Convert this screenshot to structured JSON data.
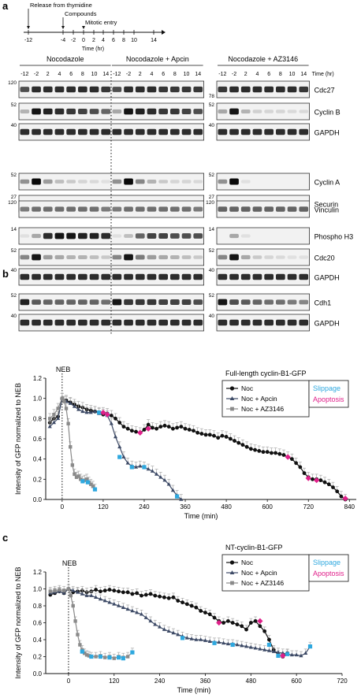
{
  "panel_a": {
    "letter": "a",
    "timeline": {
      "events": [
        {
          "label": "Release from thymidine",
          "at": "-12"
        },
        {
          "label": "Compounds",
          "at": "-4"
        },
        {
          "label": "Mitotic entry",
          "at": "0"
        }
      ],
      "ticks": [
        "-12",
        "-4",
        "-2",
        "0",
        "2",
        "4",
        "6",
        "8",
        "10",
        "14"
      ],
      "axis_label": "Time (hr)"
    },
    "time_header_label": "Time (hr)",
    "conditions": [
      {
        "name": "Nocodazole",
        "timepoints": [
          "-12",
          "-2",
          "2",
          "4",
          "6",
          "8",
          "10",
          "14"
        ]
      },
      {
        "name": "Nocodazole + Apcin",
        "timepoints": [
          "-12",
          "-2",
          "2",
          "4",
          "6",
          "8",
          "10",
          "14"
        ]
      },
      {
        "name": "Nocodazole + AZ3146",
        "timepoints": [
          "-12",
          "-2",
          "2",
          "4",
          "6",
          "8",
          "10",
          "14"
        ]
      }
    ],
    "blots": [
      {
        "protein": "Cdc27",
        "mw_left": "120",
        "mw_right": "78"
      },
      {
        "protein": "Cyclin B",
        "mw_left": "52",
        "mw_right": "52"
      },
      {
        "protein": "GAPDH",
        "mw_left": "40",
        "mw_right": "40"
      },
      {
        "protein": "Cyclin A",
        "mw_left": "52",
        "mw_right": "52"
      },
      {
        "protein": "Securin",
        "mw_left": "27",
        "mw_right": "27"
      },
      {
        "protein": "Vinculin",
        "mw_left": "120",
        "mw_right": "120"
      },
      {
        "protein": "Phospho H3",
        "mw_left": "14",
        "mw_right": "14"
      },
      {
        "protein": "Cdc20",
        "mw_left": "52",
        "mw_right": "52"
      },
      {
        "protein": "GAPDH",
        "mw_left": "40",
        "mw_right": "40"
      },
      {
        "protein": "Cdh1",
        "mw_left": "52",
        "mw_right": "52"
      },
      {
        "protein": "GAPDH",
        "mw_left": "40",
        "mw_right": "40"
      }
    ]
  },
  "chart_data": [
    {
      "panel": "b",
      "type": "line",
      "title": "Full-length cyclin-B1-GFP",
      "annotation": "NEB",
      "ylabel": "Intensity of GFP normalized to NEB",
      "xlabel": "Time (min)",
      "xlim": [
        -48,
        860
      ],
      "ylim": [
        0,
        1.2
      ],
      "xticks": [
        0,
        120,
        240,
        360,
        480,
        600,
        720,
        840
      ],
      "yticks": [
        0.0,
        0.2,
        0.4,
        0.6,
        0.8,
        1.0,
        1.2
      ],
      "legend": {
        "position": "top-right",
        "entries": [
          "Noc",
          "Noc + Apcin",
          "Noc + AZ3146"
        ]
      },
      "event_legend": [
        "Slippage",
        "Apoptosis"
      ],
      "series": [
        {
          "name": "Noc",
          "color": "#111111",
          "marker": "circle",
          "x": [
            -36,
            -24,
            -12,
            0,
            12,
            24,
            36,
            48,
            60,
            72,
            84,
            96,
            108,
            120,
            132,
            144,
            156,
            168,
            180,
            192,
            204,
            216,
            228,
            240,
            252,
            264,
            276,
            288,
            300,
            312,
            324,
            336,
            348,
            360,
            372,
            384,
            396,
            408,
            420,
            432,
            444,
            456,
            468,
            480,
            492,
            504,
            516,
            528,
            540,
            552,
            564,
            576,
            588,
            600,
            612,
            624,
            636,
            648,
            660,
            672,
            684,
            696,
            708,
            720,
            732,
            744,
            756,
            768,
            780,
            792,
            804,
            816,
            828
          ],
          "y": [
            0.76,
            0.8,
            0.82,
            1.0,
            0.98,
            0.96,
            0.94,
            0.92,
            0.91,
            0.89,
            0.88,
            0.87,
            0.86,
            0.84,
            0.85,
            0.83,
            0.8,
            0.76,
            0.72,
            0.7,
            0.68,
            0.67,
            0.66,
            0.69,
            0.74,
            0.71,
            0.7,
            0.72,
            0.73,
            0.72,
            0.7,
            0.71,
            0.72,
            0.7,
            0.69,
            0.68,
            0.66,
            0.65,
            0.64,
            0.64,
            0.63,
            0.61,
            0.63,
            0.62,
            0.6,
            0.58,
            0.56,
            0.54,
            0.52,
            0.5,
            0.49,
            0.48,
            0.47,
            0.47,
            0.46,
            0.46,
            0.45,
            0.44,
            0.42,
            0.4,
            0.36,
            0.32,
            0.26,
            0.22,
            0.2,
            0.2,
            0.19,
            0.17,
            0.15,
            0.12,
            0.08,
            0.03,
            0.0
          ]
        },
        {
          "name": "Noc + Apcin",
          "color": "#3d4a66",
          "marker": "triangle",
          "x": [
            -36,
            -24,
            -12,
            0,
            12,
            24,
            36,
            48,
            60,
            72,
            84,
            96,
            108,
            120,
            132,
            144,
            156,
            168,
            180,
            192,
            204,
            216,
            228,
            240,
            252,
            264,
            276,
            288,
            300,
            312,
            324,
            336,
            348
          ],
          "y": [
            0.72,
            0.76,
            0.8,
            1.0,
            0.97,
            0.95,
            0.92,
            0.89,
            0.87,
            0.86,
            0.86,
            0.87,
            0.85,
            0.86,
            0.83,
            0.75,
            0.62,
            0.52,
            0.42,
            0.36,
            0.33,
            0.32,
            0.33,
            0.32,
            0.3,
            0.28,
            0.25,
            0.22,
            0.19,
            0.15,
            0.09,
            0.04,
            0.0
          ]
        },
        {
          "name": "Noc + AZ3146",
          "color": "#8a8a8a",
          "marker": "square",
          "x": [
            -36,
            -24,
            -12,
            0,
            6,
            12,
            18,
            24,
            30,
            36,
            42,
            48,
            54,
            60,
            66,
            72,
            78,
            84,
            90,
            96
          ],
          "y": [
            0.8,
            0.84,
            0.9,
            1.0,
            0.97,
            0.9,
            0.75,
            0.52,
            0.34,
            0.25,
            0.22,
            0.23,
            0.2,
            0.18,
            0.19,
            0.2,
            0.17,
            0.15,
            0.13,
            0.1
          ]
        }
      ],
      "events": {
        "slippage": {
          "color": "#2ea8df",
          "points": [
            [
              108,
              0.86
            ],
            [
              132,
              0.84
            ],
            [
              168,
              0.42
            ],
            [
              204,
              0.32
            ],
            [
              240,
              0.32
            ],
            [
              336,
              0.03
            ],
            [
              96,
              0.1
            ],
            [
              60,
              0.18
            ],
            [
              75,
              0.17
            ]
          ]
        },
        "apoptosis": {
          "color": "#e0208a",
          "points": [
            [
              132,
              0.84
            ],
            [
              252,
              0.7
            ],
            [
              228,
              0.66
            ],
            [
              660,
              0.42
            ],
            [
              744,
              0.19
            ],
            [
              720,
              0.21
            ],
            [
              828,
              0.01
            ],
            [
              120,
              0.86
            ]
          ]
        }
      }
    },
    {
      "panel": "c",
      "type": "line",
      "title": "NT-cyclin-B1-GFP",
      "annotation": "NEB",
      "ylabel": "Intensity of GFP normalized to NEB",
      "xlabel": "Time (min)",
      "xlim": [
        -60,
        720
      ],
      "ylim": [
        0,
        1.2
      ],
      "xticks": [
        0,
        120,
        240,
        360,
        480,
        600,
        720
      ],
      "yticks": [
        0.0,
        0.2,
        0.4,
        0.6,
        0.8,
        1.0,
        1.2
      ],
      "legend": {
        "position": "top-right",
        "entries": [
          "Noc",
          "Noc + Apcin",
          "Noc + AZ3146"
        ]
      },
      "event_legend": [
        "Slippage",
        "Apoptosis"
      ],
      "series": [
        {
          "name": "Noc",
          "color": "#111111",
          "marker": "circle",
          "x": [
            -48,
            -36,
            -24,
            -12,
            0,
            12,
            24,
            36,
            48,
            60,
            72,
            84,
            96,
            108,
            120,
            132,
            144,
            156,
            168,
            180,
            192,
            204,
            216,
            228,
            240,
            252,
            264,
            276,
            288,
            300,
            312,
            324,
            336,
            348,
            360,
            372,
            384,
            396,
            408,
            420,
            432,
            444,
            456,
            468,
            480,
            492,
            504,
            516,
            528,
            540,
            552,
            564,
            576
          ],
          "y": [
            0.93,
            0.95,
            0.97,
            0.95,
            1.0,
            0.96,
            0.97,
            0.98,
            0.96,
            0.97,
            0.99,
            0.97,
            0.98,
            0.99,
            0.98,
            0.97,
            0.96,
            0.96,
            0.94,
            0.95,
            0.92,
            0.93,
            0.94,
            0.92,
            0.91,
            0.9,
            0.89,
            0.9,
            0.86,
            0.84,
            0.82,
            0.8,
            0.78,
            0.74,
            0.72,
            0.7,
            0.66,
            0.62,
            0.6,
            0.62,
            0.6,
            0.58,
            0.56,
            0.52,
            0.6,
            0.62,
            0.56,
            0.5,
            0.4,
            0.28,
            0.22,
            0.2,
            0.24
          ]
        },
        {
          "name": "Noc + Apcin",
          "color": "#3d4a66",
          "marker": "triangle",
          "x": [
            -48,
            -36,
            -24,
            -12,
            0,
            12,
            24,
            36,
            48,
            60,
            72,
            84,
            96,
            108,
            120,
            132,
            144,
            156,
            168,
            180,
            192,
            204,
            216,
            228,
            240,
            252,
            264,
            276,
            288,
            300,
            312,
            324,
            336,
            348,
            360,
            372,
            384,
            396,
            408,
            420,
            432,
            444,
            456,
            468,
            480,
            492,
            504,
            516,
            528,
            540,
            552,
            564,
            576,
            588,
            600,
            612,
            624,
            636
          ],
          "y": [
            0.95,
            0.96,
            0.97,
            0.95,
            1.0,
            0.98,
            0.96,
            0.94,
            0.92,
            0.92,
            0.9,
            0.88,
            0.86,
            0.84,
            0.82,
            0.8,
            0.78,
            0.76,
            0.74,
            0.72,
            0.7,
            0.66,
            0.62,
            0.58,
            0.55,
            0.52,
            0.5,
            0.48,
            0.46,
            0.44,
            0.42,
            0.41,
            0.4,
            0.4,
            0.39,
            0.38,
            0.37,
            0.37,
            0.36,
            0.35,
            0.35,
            0.34,
            0.33,
            0.32,
            0.31,
            0.3,
            0.29,
            0.28,
            0.27,
            0.26,
            0.25,
            0.24,
            0.23,
            0.22,
            0.22,
            0.21,
            0.24,
            0.32
          ]
        },
        {
          "name": "Noc + AZ3146",
          "color": "#8a8a8a",
          "marker": "square",
          "x": [
            -48,
            -36,
            -24,
            -12,
            0,
            6,
            12,
            18,
            24,
            30,
            36,
            42,
            48,
            54,
            60,
            72,
            84,
            96,
            108,
            120,
            132,
            144,
            156,
            168
          ],
          "y": [
            0.97,
            0.98,
            0.99,
            0.98,
            1.0,
            0.92,
            0.8,
            0.62,
            0.46,
            0.34,
            0.28,
            0.24,
            0.22,
            0.21,
            0.2,
            0.2,
            0.21,
            0.19,
            0.2,
            0.18,
            0.2,
            0.19,
            0.2,
            0.25
          ]
        }
      ],
      "events": {
        "slippage": {
          "color": "#2ea8df",
          "points": [
            [
              36,
              0.26
            ],
            [
              60,
              0.2
            ],
            [
              84,
              0.2
            ],
            [
              108,
              0.19
            ],
            [
              132,
              0.19
            ],
            [
              144,
              0.18
            ],
            [
              168,
              0.25
            ],
            [
              300,
              0.42
            ],
            [
              384,
              0.36
            ],
            [
              432,
              0.34
            ],
            [
              528,
              0.34
            ],
            [
              552,
              0.21
            ],
            [
              576,
              0.23
            ],
            [
              636,
              0.32
            ]
          ]
        },
        "apoptosis": {
          "color": "#e0208a",
          "points": [
            [
              396,
              0.6
            ],
            [
              504,
              0.62
            ],
            [
              564,
              0.21
            ]
          ]
        }
      }
    }
  ]
}
